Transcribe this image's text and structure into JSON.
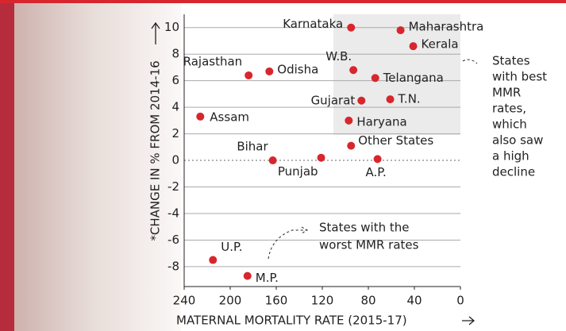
{
  "chart_data": {
    "type": "scatter",
    "xlabel": "MATERNAL MORTALITY RATE (2015-17)",
    "ylabel": "*CHANGE IN % FROM 2014-16",
    "labels": [
      "Karnataka",
      "Maharashtra",
      "Kerala",
      "W.B.",
      "Telangana",
      "Rajasthan",
      "Odisha",
      "Gujarat",
      "T.N.",
      "Assam",
      "Haryana",
      "Other States",
      "Bihar",
      "Punjab",
      "A.P.",
      "U.P.",
      "M.P."
    ],
    "x": [
      95,
      52,
      41,
      93,
      74,
      184,
      166,
      86,
      61,
      226,
      97,
      95,
      163,
      121,
      72,
      215,
      185
    ],
    "series": [
      {
        "color": "#d7262e",
        "values": [
          10.0,
          9.8,
          8.6,
          6.8,
          6.2,
          6.4,
          6.7,
          4.5,
          4.6,
          3.3,
          3.0,
          1.1,
          0,
          0.2,
          0.1,
          -7.5,
          -8.7
        ]
      }
    ],
    "xlim": [
      240,
      0
    ],
    "ylim": [
      -9.5,
      11
    ],
    "xticks": [
      240,
      200,
      160,
      120,
      80,
      40,
      0
    ],
    "yticks": [
      10,
      8,
      6,
      4,
      2,
      0,
      -2,
      -4,
      -6,
      -8
    ],
    "grid": true,
    "annotations": [
      {
        "lines": [
          "States",
          "with best",
          "MMR",
          "rates,",
          "which",
          "also saw",
          "a high",
          "decline"
        ]
      },
      {
        "lines": [
          "States with the",
          "worst MMR rates"
        ]
      }
    ]
  }
}
